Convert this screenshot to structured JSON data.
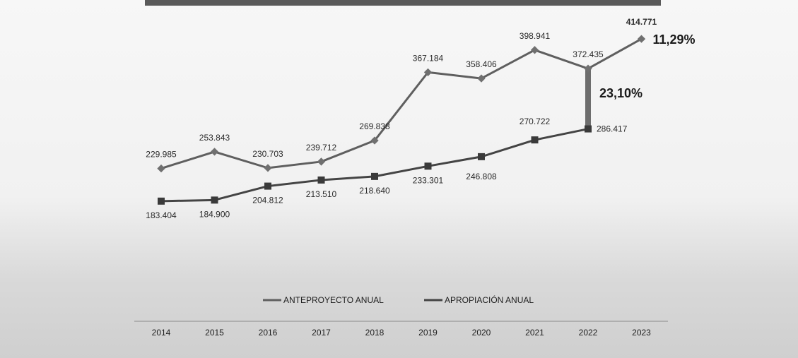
{
  "colors": {
    "series1": "#5f5f5f",
    "series2": "#444444",
    "band": "#555555",
    "marker1": "#707070",
    "marker2": "#3a3a3a"
  },
  "chart_data": {
    "type": "line",
    "title": "",
    "xlabel": "",
    "ylabel": "",
    "x": [
      "2014",
      "2015",
      "2016",
      "2017",
      "2018",
      "2019",
      "2020",
      "2021",
      "2022",
      "2023"
    ],
    "ylim": [
      150000,
      430000
    ],
    "grid": false,
    "legend_position": "bottom",
    "series": [
      {
        "name": "ANTEPROYECTO ANUAL",
        "values": [
          229985,
          253843,
          230703,
          239712,
          269838,
          367184,
          358406,
          398941,
          372435,
          414771
        ],
        "labels": [
          "229.985",
          "253.843",
          "230.703",
          "239.712",
          "269.838",
          "367.184",
          "358.406",
          "398.941",
          "372.435",
          "414.771"
        ]
      },
      {
        "name": "APROPIACIÓN ANUAL",
        "values": [
          183404,
          184900,
          204812,
          213510,
          218640,
          233301,
          246808,
          270722,
          286417,
          null
        ],
        "labels": [
          "183.404",
          "184.900",
          "204.812",
          "213.510",
          "218.640",
          "233.301",
          "246.808",
          "270.722",
          "286.417",
          ""
        ]
      }
    ],
    "annotations": [
      {
        "text": "11,29%",
        "year": "2023",
        "series": "ANTEPROYECTO ANUAL"
      },
      {
        "text": "23,10%",
        "year": "2022",
        "note_type": "gap-between-series"
      }
    ]
  }
}
